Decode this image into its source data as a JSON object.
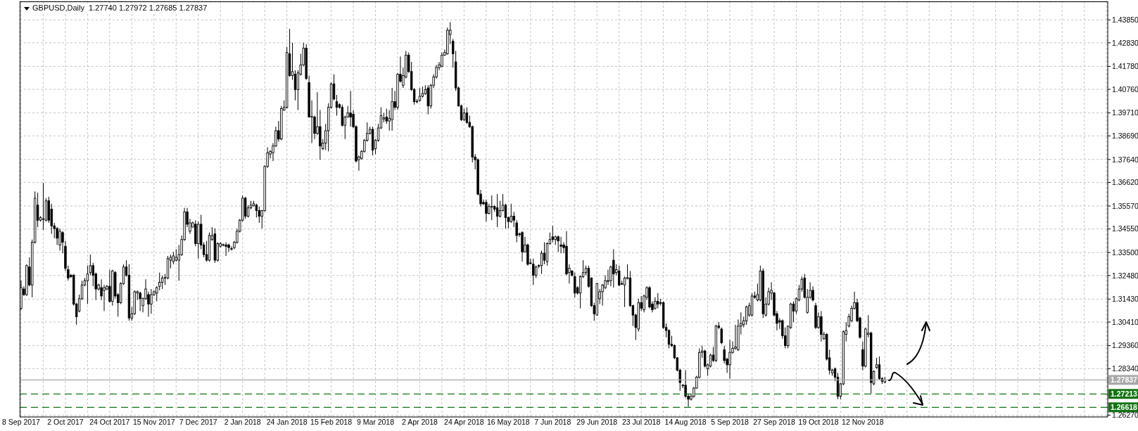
{
  "chart_data": {
    "type": "candlestick",
    "title": "GBPUSD,Daily  1.27740 1.27972 1.27685 1.27837",
    "color": "#000000",
    "grid": true,
    "ylim": [
      1.2619,
      1.4467
    ],
    "yticks": [
      {
        "value": 1.4385,
        "label": "1.43850"
      },
      {
        "value": 1.4283,
        "label": "1.42830"
      },
      {
        "value": 1.4178,
        "label": "1.41780"
      },
      {
        "value": 1.4076,
        "label": "1.40760"
      },
      {
        "value": 1.3971,
        "label": "1.39710"
      },
      {
        "value": 1.3869,
        "label": "1.38690"
      },
      {
        "value": 1.3764,
        "label": "1.37640"
      },
      {
        "value": 1.3662,
        "label": "1.36620"
      },
      {
        "value": 1.3557,
        "label": "1.35570"
      },
      {
        "value": 1.3455,
        "label": "1.34550"
      },
      {
        "value": 1.335,
        "label": "1.33500"
      },
      {
        "value": 1.3248,
        "label": "1.32480"
      },
      {
        "value": 1.3143,
        "label": "1.31430"
      },
      {
        "value": 1.3041,
        "label": "1.30410"
      },
      {
        "value": 1.2936,
        "label": "1.29360"
      },
      {
        "value": 1.2834,
        "label": "1.28340"
      },
      {
        "value": 1.2627,
        "label": "1.26270"
      }
    ],
    "ref_lines": [
      {
        "axis": "y",
        "value": 1.27837,
        "label": "1.27837",
        "color": "#a8a8a8",
        "line_style": "solid"
      },
      {
        "axis": "y",
        "value": 1.27213,
        "label": "1.27213",
        "color": "#137313",
        "line_style": "dashed"
      },
      {
        "axis": "y",
        "value": 1.26618,
        "label": "1.26618",
        "color": "#137313",
        "line_style": "dashed"
      }
    ],
    "categories": [
      "8 Sep 2017",
      null,
      null,
      null,
      null,
      null,
      null,
      null,
      null,
      null,
      null,
      null,
      null,
      null,
      null,
      null,
      "2 Oct 2017",
      null,
      null,
      null,
      null,
      null,
      null,
      null,
      null,
      null,
      null,
      null,
      null,
      null,
      null,
      null,
      "24 Oct 2017",
      null,
      null,
      null,
      null,
      null,
      null,
      null,
      null,
      null,
      null,
      null,
      null,
      null,
      null,
      null,
      "15 Nov 2017",
      null,
      null,
      null,
      null,
      null,
      null,
      null,
      null,
      null,
      null,
      null,
      null,
      null,
      null,
      null,
      "7 Dec 2017",
      null,
      null,
      null,
      null,
      null,
      null,
      null,
      null,
      null,
      null,
      null,
      null,
      null,
      null,
      null,
      "2 Jan 2018",
      null,
      null,
      null,
      null,
      null,
      null,
      null,
      null,
      null,
      null,
      null,
      null,
      null,
      null,
      null,
      "24 Jan 2018",
      null,
      null,
      null,
      null,
      null,
      null,
      null,
      null,
      null,
      null,
      null,
      null,
      null,
      null,
      null,
      "15 Feb 2018",
      null,
      null,
      null,
      null,
      null,
      null,
      null,
      null,
      null,
      null,
      null,
      null,
      null,
      null,
      null,
      "9 Mar 2018",
      null,
      null,
      null,
      null,
      null,
      null,
      null,
      null,
      null,
      null,
      null,
      null,
      null,
      null,
      null,
      "2 Apr 2018",
      null,
      null,
      null,
      null,
      null,
      null,
      null,
      null,
      null,
      null,
      null,
      null,
      null,
      null,
      null,
      "24 Apr 2018",
      null,
      null,
      null,
      null,
      null,
      null,
      null,
      null,
      null,
      null,
      null,
      null,
      null,
      null,
      null,
      "16 May 2018",
      null,
      null,
      null,
      null,
      null,
      null,
      null,
      null,
      null,
      null,
      null,
      null,
      null,
      null,
      null,
      "7 Jun 2018",
      null,
      null,
      null,
      null,
      null,
      null,
      null,
      null,
      null,
      null,
      null,
      null,
      null,
      null,
      null,
      "29 Jun 2018",
      null,
      null,
      null,
      null,
      null,
      null,
      null,
      null,
      null,
      null,
      null,
      null,
      null,
      null,
      null,
      "23 Jul 2018",
      null,
      null,
      null,
      null,
      null,
      null,
      null,
      null,
      null,
      null,
      null,
      null,
      null,
      null,
      null,
      "14 Aug 2018",
      null,
      null,
      null,
      null,
      null,
      null,
      null,
      null,
      null,
      null,
      null,
      null,
      null,
      null,
      null,
      "5 Sep 2018",
      null,
      null,
      null,
      null,
      null,
      null,
      null,
      null,
      null,
      null,
      null,
      null,
      null,
      null,
      null,
      "27 Sep 2018",
      null,
      null,
      null,
      null,
      null,
      null,
      null,
      null,
      null,
      null,
      null,
      null,
      null,
      null,
      null,
      "19 Oct 2018",
      null,
      null,
      null,
      null,
      null,
      null,
      null,
      null,
      null,
      null,
      null,
      null,
      null,
      null,
      null,
      "12 Nov 2018",
      null,
      null,
      null,
      null,
      null,
      null,
      null,
      null,
      null,
      null,
      null,
      null,
      null,
      null,
      null,
      null,
      null,
      null,
      null,
      null,
      null,
      null,
      null,
      null,
      null,
      null,
      null,
      null,
      null,
      null,
      null,
      null,
      null,
      null,
      null,
      null,
      null,
      null,
      null,
      null,
      null,
      null,
      null,
      null,
      null,
      null,
      null,
      null,
      null,
      null,
      null,
      null,
      null,
      null,
      null,
      null,
      null,
      null,
      null,
      null,
      null,
      null,
      null,
      null,
      null,
      null,
      null,
      null,
      null,
      null,
      null,
      null,
      null,
      null,
      null,
      null,
      null,
      null,
      null,
      null,
      null,
      null,
      null,
      null,
      null,
      null,
      null,
      null
    ],
    "ohlc": [
      [
        1.3102,
        1.3225,
        1.3096,
        1.3194
      ],
      [
        1.3188,
        1.32,
        1.3157,
        1.3163
      ],
      [
        1.3163,
        1.3298,
        1.3157,
        1.3292
      ],
      [
        1.3286,
        1.3329,
        1.32,
        1.3206
      ],
      [
        1.3206,
        1.3408,
        1.3151,
        1.3396
      ],
      [
        1.3396,
        1.3622,
        1.339,
        1.3592
      ],
      [
        1.3561,
        1.3616,
        1.3463,
        1.3494
      ],
      [
        1.3494,
        1.3512,
        1.3488,
        1.3506
      ],
      [
        1.35,
        1.3659,
        1.3451,
        1.3498
      ],
      [
        1.3494,
        1.3592,
        1.3488,
        1.358
      ],
      [
        1.358,
        1.3598,
        1.3482,
        1.3494
      ],
      [
        1.3543,
        1.3567,
        1.3433,
        1.3469
      ],
      [
        1.3469,
        1.3482,
        1.3414,
        1.3457
      ],
      [
        1.3457,
        1.3463,
        1.3384,
        1.3414
      ],
      [
        1.3384,
        1.3457,
        1.3359,
        1.3445
      ],
      [
        1.3439,
        1.3445,
        1.3347,
        1.3396
      ],
      [
        1.3378,
        1.3402,
        1.3268,
        1.328
      ],
      [
        1.3274,
        1.3292,
        1.3225,
        1.3237
      ],
      [
        1.3249,
        1.3255,
        1.3237,
        1.3243
      ],
      [
        1.3249,
        1.3255,
        1.3114,
        1.3121
      ],
      [
        1.3121,
        1.3127,
        1.3029,
        1.3065
      ],
      [
        1.309,
        1.3163,
        1.3084,
        1.3145
      ],
      [
        1.3145,
        1.3225,
        1.3139,
        1.3206
      ],
      [
        1.3206,
        1.3237,
        1.32,
        1.3225
      ],
      [
        1.3225,
        1.3292,
        1.3121,
        1.3255
      ],
      [
        1.3261,
        1.3341,
        1.3249,
        1.3292
      ],
      [
        1.3292,
        1.3304,
        1.32,
        1.3249
      ],
      [
        1.3255,
        1.3261,
        1.3139,
        1.3188
      ],
      [
        1.3188,
        1.3212,
        1.3182,
        1.3206
      ],
      [
        1.3194,
        1.3231,
        1.3139,
        1.3157
      ],
      [
        1.3182,
        1.3206,
        1.309,
        1.3194
      ],
      [
        1.3188,
        1.3206,
        1.3182,
        1.32
      ],
      [
        1.32,
        1.3274,
        1.3127,
        1.3133
      ],
      [
        1.3133,
        1.3274,
        1.3114,
        1.3268
      ],
      [
        1.3261,
        1.3268,
        1.3145,
        1.3157
      ],
      [
        1.3163,
        1.317,
        1.3065,
        1.3127
      ],
      [
        1.3127,
        1.3218,
        1.3121,
        1.3212
      ],
      [
        1.3212,
        1.3298,
        1.3206,
        1.3286
      ],
      [
        1.3286,
        1.3316,
        1.3243,
        1.3249
      ],
      [
        1.3249,
        1.3298,
        1.3047,
        1.3059
      ],
      [
        1.3059,
        1.3108,
        1.3047,
        1.3078
      ],
      [
        1.3078,
        1.3182,
        1.3072,
        1.3176
      ],
      [
        1.317,
        1.3182,
        1.3139,
        1.3176
      ],
      [
        1.317,
        1.3176,
        1.309,
        1.3145
      ],
      [
        1.3114,
        1.3151,
        1.3084,
        1.3145
      ],
      [
        1.3145,
        1.3231,
        1.3139,
        1.3188
      ],
      [
        1.3163,
        1.3176,
        1.3065,
        1.3121
      ],
      [
        1.3121,
        1.3188,
        1.3078,
        1.3163
      ],
      [
        1.3163,
        1.3182,
        1.3157,
        1.3176
      ],
      [
        1.317,
        1.32,
        1.3133,
        1.3194
      ],
      [
        1.32,
        1.3261,
        1.3182,
        1.3218
      ],
      [
        1.3218,
        1.3249,
        1.3188,
        1.3237
      ],
      [
        1.3237,
        1.3255,
        1.3206,
        1.3239
      ],
      [
        1.3237,
        1.3335,
        1.3231,
        1.3323
      ],
      [
        1.3316,
        1.3341,
        1.328,
        1.3329
      ],
      [
        1.331,
        1.3353,
        1.3298,
        1.3335
      ],
      [
        1.3316,
        1.3365,
        1.331,
        1.3329
      ],
      [
        1.3316,
        1.3384,
        1.3225,
        1.3341
      ],
      [
        1.3341,
        1.3426,
        1.3335,
        1.3408
      ],
      [
        1.3408,
        1.3549,
        1.3402,
        1.3531
      ],
      [
        1.3531,
        1.3549,
        1.3463,
        1.3476
      ],
      [
        1.3445,
        1.35,
        1.3433,
        1.3482
      ],
      [
        1.3463,
        1.3488,
        1.3463,
        1.3482
      ],
      [
        1.3476,
        1.3494,
        1.3378,
        1.339
      ],
      [
        1.339,
        1.3488,
        1.3323,
        1.3476
      ],
      [
        1.3476,
        1.3518,
        1.3365,
        1.3384
      ],
      [
        1.3384,
        1.3396,
        1.3329,
        1.3341
      ],
      [
        1.3341,
        1.3402,
        1.331,
        1.3316
      ],
      [
        1.3316,
        1.3439,
        1.331,
        1.3426
      ],
      [
        1.3408,
        1.3463,
        1.3402,
        1.3426
      ],
      [
        1.3433,
        1.3457,
        1.3304,
        1.3316
      ],
      [
        1.3316,
        1.3396,
        1.331,
        1.339
      ],
      [
        1.3378,
        1.3396,
        1.3372,
        1.339
      ],
      [
        1.3384,
        1.339,
        1.3378,
        1.3385
      ],
      [
        1.3384,
        1.3396,
        1.3335,
        1.3378
      ],
      [
        1.3384,
        1.339,
        1.3353,
        1.3372
      ],
      [
        1.3365,
        1.3378,
        1.3359,
        1.3368
      ],
      [
        1.3372,
        1.3402,
        1.3365,
        1.3396
      ],
      [
        1.3396,
        1.3457,
        1.339,
        1.3445
      ],
      [
        1.3445,
        1.35,
        1.3439,
        1.3494
      ],
      [
        1.3494,
        1.3604,
        1.3488,
        1.3592
      ],
      [
        1.3592,
        1.3598,
        1.35,
        1.3512
      ],
      [
        1.3512,
        1.3561,
        1.3506,
        1.3549
      ],
      [
        1.3549,
        1.358,
        1.3543,
        1.3561
      ],
      [
        1.3558,
        1.358,
        1.3555,
        1.3567
      ],
      [
        1.3561,
        1.3567,
        1.3506,
        1.3537
      ],
      [
        1.3537,
        1.3555,
        1.3482,
        1.3512
      ],
      [
        1.3512,
        1.354,
        1.3457,
        1.3537
      ],
      [
        1.3537,
        1.3739,
        1.3531,
        1.3733
      ],
      [
        1.3733,
        1.3818,
        1.3726,
        1.3794
      ],
      [
        1.3788,
        1.3806,
        1.3769,
        1.38
      ],
      [
        1.3794,
        1.3837,
        1.3757,
        1.3824
      ],
      [
        1.3824,
        1.391,
        1.382,
        1.3892
      ],
      [
        1.3892,
        1.3935,
        1.3843,
        1.3855
      ],
      [
        1.3855,
        1.4002,
        1.3849,
        1.399
      ],
      [
        1.3984,
        1.4027,
        1.398,
        1.3996
      ],
      [
        1.3996,
        1.4265,
        1.399,
        1.424
      ],
      [
        1.4234,
        1.4345,
        1.4131,
        1.4137
      ],
      [
        1.4137,
        1.4283,
        1.4118,
        1.4155
      ],
      [
        1.4143,
        1.4161,
        1.4027,
        1.4075
      ],
      [
        1.4075,
        1.4161,
        1.3984,
        1.4149
      ],
      [
        1.4143,
        1.4234,
        1.4137,
        1.4185
      ],
      [
        1.4185,
        1.4283,
        1.4179,
        1.4259
      ],
      [
        1.4259,
        1.4277,
        1.4118,
        1.4124
      ],
      [
        1.4106,
        1.4137,
        1.395,
        1.3953
      ],
      [
        1.3953,
        1.4027,
        1.3837,
        1.3955
      ],
      [
        1.3953,
        1.3959,
        1.3855,
        1.388
      ],
      [
        1.388,
        1.4063,
        1.3873,
        1.391
      ],
      [
        1.391,
        1.3984,
        1.3763,
        1.3824
      ],
      [
        1.3812,
        1.3855,
        1.3806,
        1.3837
      ],
      [
        1.3837,
        1.3922,
        1.3806,
        1.3892
      ],
      [
        1.3892,
        1.4014,
        1.38,
        1.3996
      ],
      [
        1.3996,
        1.4106,
        1.399,
        1.41
      ],
      [
        1.41,
        1.4143,
        1.4027,
        1.4033
      ],
      [
        1.4021,
        1.4051,
        1.3959,
        1.3996
      ],
      [
        1.4008,
        1.4014,
        1.399,
        1.3996
      ],
      [
        1.3996,
        1.4008,
        1.391,
        1.3916
      ],
      [
        1.3916,
        1.3959,
        1.3855,
        1.3953
      ],
      [
        1.3953,
        1.4002,
        1.395,
        1.3971
      ],
      [
        1.3971,
        1.4069,
        1.391,
        1.3953
      ],
      [
        1.3965,
        1.3984,
        1.3904,
        1.391
      ],
      [
        1.391,
        1.3916,
        1.3751,
        1.3757
      ],
      [
        1.3763,
        1.3782,
        1.3714,
        1.3775
      ],
      [
        1.3769,
        1.3806,
        1.3763,
        1.38
      ],
      [
        1.38,
        1.3855,
        1.3795,
        1.3849
      ],
      [
        1.3849,
        1.3929,
        1.3843,
        1.388
      ],
      [
        1.388,
        1.391,
        1.3875,
        1.3898
      ],
      [
        1.3898,
        1.391,
        1.3782,
        1.3806
      ],
      [
        1.3812,
        1.3855,
        1.3788,
        1.3849
      ],
      [
        1.3849,
        1.3922,
        1.3843,
        1.3904
      ],
      [
        1.3904,
        1.3996,
        1.39,
        1.3959
      ],
      [
        1.3944,
        1.3971,
        1.3929,
        1.3949
      ],
      [
        1.3953,
        1.399,
        1.3922,
        1.3935
      ],
      [
        1.3935,
        1.3984,
        1.3892,
        1.3947
      ],
      [
        1.3941,
        1.4082,
        1.3892,
        1.4021
      ],
      [
        1.4021,
        1.4069,
        1.3984,
        1.3996
      ],
      [
        1.3996,
        1.4149,
        1.3984,
        1.4143
      ],
      [
        1.4143,
        1.4222,
        1.4106,
        1.4112
      ],
      [
        1.4094,
        1.4173,
        1.4082,
        1.4137
      ],
      [
        1.4131,
        1.4247,
        1.4124,
        1.4228
      ],
      [
        1.4228,
        1.424,
        1.4149,
        1.4155
      ],
      [
        1.4155,
        1.4198,
        1.4069,
        1.4075
      ],
      [
        1.4075,
        1.4082,
        1.4008,
        1.4021
      ],
      [
        1.4023,
        1.4033,
        1.4014,
        1.4021
      ],
      [
        1.4027,
        1.4082,
        1.4021,
        1.4045
      ],
      [
        1.4045,
        1.4088,
        1.4039,
        1.4057
      ],
      [
        1.4057,
        1.4094,
        1.4051,
        1.4075
      ],
      [
        1.4082,
        1.4094,
        1.3965,
        1.4002
      ],
      [
        1.4002,
        1.41,
        1.399,
        1.4094
      ],
      [
        1.4094,
        1.4143,
        1.4082,
        1.4131
      ],
      [
        1.4131,
        1.4185,
        1.4124,
        1.4173
      ],
      [
        1.4173,
        1.4198,
        1.4161,
        1.4185
      ],
      [
        1.4179,
        1.424,
        1.4173,
        1.4228
      ],
      [
        1.4228,
        1.4253,
        1.4225,
        1.424
      ],
      [
        1.4234,
        1.4351,
        1.423,
        1.4339
      ],
      [
        1.432,
        1.4375,
        1.4277,
        1.4339
      ],
      [
        1.429,
        1.43,
        1.4173,
        1.4234
      ],
      [
        1.4198,
        1.4247,
        1.4069,
        1.4082
      ],
      [
        1.4082,
        1.4088,
        1.4,
        1.4002
      ],
      [
        1.4002,
        1.4008,
        1.3935,
        1.3941
      ],
      [
        1.3941,
        1.399,
        1.3935,
        1.3971
      ],
      [
        1.3971,
        1.3996,
        1.3922,
        1.3929
      ],
      [
        1.3929,
        1.3959,
        1.3904,
        1.391
      ],
      [
        1.391,
        1.3915,
        1.3751,
        1.3775
      ],
      [
        1.3775,
        1.3788,
        1.372,
        1.3763
      ],
      [
        1.3763,
        1.3769,
        1.3604,
        1.361
      ],
      [
        1.361,
        1.3629,
        1.3555,
        1.3567
      ],
      [
        1.3573,
        1.3586,
        1.3561,
        1.3567
      ],
      [
        1.3573,
        1.3586,
        1.3488,
        1.3524
      ],
      [
        1.3524,
        1.3567,
        1.352,
        1.3555
      ],
      [
        1.3553,
        1.3604,
        1.3494,
        1.3555
      ],
      [
        1.3555,
        1.3561,
        1.3531,
        1.3543
      ],
      [
        1.3549,
        1.361,
        1.3463,
        1.3512
      ],
      [
        1.3512,
        1.358,
        1.3506,
        1.3537
      ],
      [
        1.3537,
        1.361,
        1.3533,
        1.3561
      ],
      [
        1.3561,
        1.3567,
        1.3457,
        1.3506
      ],
      [
        1.3506,
        1.351,
        1.3457,
        1.3488
      ],
      [
        1.3488,
        1.3567,
        1.3482,
        1.3512
      ],
      [
        1.3512,
        1.3531,
        1.3463,
        1.3494
      ],
      [
        1.3482,
        1.3494,
        1.3396,
        1.3426
      ],
      [
        1.3433,
        1.3439,
        1.342,
        1.343
      ],
      [
        1.3439,
        1.3445,
        1.331,
        1.3353
      ],
      [
        1.3353,
        1.342,
        1.335,
        1.3384
      ],
      [
        1.3384,
        1.339,
        1.3292,
        1.3298
      ],
      [
        1.3304,
        1.3323,
        1.3298,
        1.3302
      ],
      [
        1.3298,
        1.3323,
        1.3206,
        1.3249
      ],
      [
        1.3249,
        1.3292,
        1.3237,
        1.3286
      ],
      [
        1.3292,
        1.3298,
        1.328,
        1.329
      ],
      [
        1.3292,
        1.3359,
        1.3255,
        1.3347
      ],
      [
        1.3347,
        1.3396,
        1.3298,
        1.3316
      ],
      [
        1.331,
        1.3396,
        1.3292,
        1.339
      ],
      [
        1.339,
        1.3439,
        1.3385,
        1.3408
      ],
      [
        1.342,
        1.3469,
        1.3396,
        1.3408
      ],
      [
        1.3408,
        1.3426,
        1.3384,
        1.342
      ],
      [
        1.342,
        1.3426,
        1.3353,
        1.3402
      ],
      [
        1.3384,
        1.342,
        1.3347,
        1.3378
      ],
      [
        1.3384,
        1.3396,
        1.3347,
        1.3372
      ],
      [
        1.3378,
        1.3445,
        1.3249,
        1.3255
      ],
      [
        1.3261,
        1.3298,
        1.3212,
        1.328
      ],
      [
        1.3268,
        1.3272,
        1.3243,
        1.3249
      ],
      [
        1.3243,
        1.3261,
        1.3151,
        1.317
      ],
      [
        1.3194,
        1.32,
        1.3163,
        1.317
      ],
      [
        1.317,
        1.3249,
        1.3102,
        1.3243
      ],
      [
        1.3243,
        1.3316,
        1.3237,
        1.3261
      ],
      [
        1.3261,
        1.3292,
        1.3249,
        1.328
      ],
      [
        1.328,
        1.3292,
        1.3194,
        1.32
      ],
      [
        1.3237,
        1.324,
        1.3108,
        1.3114
      ],
      [
        1.3114,
        1.3127,
        1.3047,
        1.3078
      ],
      [
        1.3072,
        1.3215,
        1.307,
        1.3212
      ],
      [
        1.3145,
        1.3188,
        1.3121,
        1.3176
      ],
      [
        1.3176,
        1.321,
        1.3114,
        1.3206
      ],
      [
        1.3194,
        1.3249,
        1.3188,
        1.3225
      ],
      [
        1.3225,
        1.3274,
        1.3206,
        1.3222
      ],
      [
        1.3225,
        1.3292,
        1.32,
        1.3286
      ],
      [
        1.3316,
        1.3365,
        1.3194,
        1.3255
      ],
      [
        1.3261,
        1.3298,
        1.3249,
        1.3274
      ],
      [
        1.3268,
        1.3292,
        1.32,
        1.3206
      ],
      [
        1.3212,
        1.3225,
        1.3206,
        1.321
      ],
      [
        1.3206,
        1.3243,
        1.3108,
        1.3237
      ],
      [
        1.3234,
        1.3298,
        1.3231,
        1.3239
      ],
      [
        1.3237,
        1.3268,
        1.3108,
        1.3114
      ],
      [
        1.3114,
        1.3118,
        1.3023,
        1.3072
      ],
      [
        1.3072,
        1.3078,
        1.2961,
        1.3017
      ],
      [
        1.301,
        1.3145,
        1.2998,
        1.3127
      ],
      [
        1.3127,
        1.3157,
        1.309,
        1.3102
      ],
      [
        1.3096,
        1.3163,
        1.3084,
        1.3157
      ],
      [
        1.3151,
        1.32,
        1.3139,
        1.3194
      ],
      [
        1.3194,
        1.32,
        1.3102,
        1.3108
      ],
      [
        1.3121,
        1.3133,
        1.3084,
        1.3096
      ],
      [
        1.3102,
        1.3151,
        1.3096,
        1.3133
      ],
      [
        1.3133,
        1.317,
        1.3102,
        1.3121
      ],
      [
        1.3127,
        1.3145,
        1.3114,
        1.3125
      ],
      [
        1.3127,
        1.3133,
        1.301,
        1.3017
      ],
      [
        1.3017,
        1.3035,
        1.2973,
        1.3004
      ],
      [
        1.3004,
        1.3008,
        1.2924,
        1.2942
      ],
      [
        1.2942,
        1.298,
        1.293,
        1.2936
      ],
      [
        1.2936,
        1.2942,
        1.2876,
        1.2882
      ],
      [
        1.2882,
        1.2885,
        1.2821,
        1.2827
      ],
      [
        1.2827,
        1.2833,
        1.2735,
        1.2772
      ],
      [
        1.276,
        1.2766,
        1.2747,
        1.2758
      ],
      [
        1.276,
        1.2827,
        1.2704,
        1.2711
      ],
      [
        1.2711,
        1.2723,
        1.2664,
        1.2698
      ],
      [
        1.2698,
        1.2723,
        1.2692,
        1.2711
      ],
      [
        1.2711,
        1.2753,
        1.2704,
        1.2747
      ],
      [
        1.2747,
        1.2802,
        1.2745,
        1.2796
      ],
      [
        1.2796,
        1.2924,
        1.279,
        1.2906
      ],
      [
        1.2906,
        1.2936,
        1.2882,
        1.2912
      ],
      [
        1.2912,
        1.2918,
        1.2839,
        1.2845
      ],
      [
        1.2833,
        1.2857,
        1.2802,
        1.2851
      ],
      [
        1.2845,
        1.29,
        1.2839,
        1.2894
      ],
      [
        1.2894,
        1.293,
        1.2863,
        1.287
      ],
      [
        1.287,
        1.3029,
        1.2863,
        1.3023
      ],
      [
        1.3023,
        1.3041,
        1.301,
        1.3017
      ],
      [
        1.301,
        1.3017,
        1.2942,
        1.2949
      ],
      [
        1.2918,
        1.2936,
        1.2857,
        1.287
      ],
      [
        1.2876,
        1.2882,
        1.2815,
        1.2851
      ],
      [
        1.2851,
        1.2961,
        1.279,
        1.2906
      ],
      [
        1.2906,
        1.2955,
        1.29,
        1.2924
      ],
      [
        1.2924,
        1.3029,
        1.2918,
        1.293
      ],
      [
        1.2918,
        1.3053,
        1.2912,
        1.3023
      ],
      [
        1.3023,
        1.3084,
        1.2986,
        1.3035
      ],
      [
        1.3029,
        1.3065,
        1.3017,
        1.3047
      ],
      [
        1.3047,
        1.3114,
        1.3029,
        1.3108
      ],
      [
        1.3072,
        1.3127,
        1.3065,
        1.3114
      ],
      [
        1.3072,
        1.317,
        1.3065,
        1.3157
      ],
      [
        1.3157,
        1.3176,
        1.3145,
        1.3151
      ],
      [
        1.3139,
        1.3212,
        1.3133,
        1.3163
      ],
      [
        1.3139,
        1.3292,
        1.3133,
        1.3268
      ],
      [
        1.3268,
        1.328,
        1.3059,
        1.3078
      ],
      [
        1.3072,
        1.3151,
        1.3065,
        1.3121
      ],
      [
        1.3121,
        1.3194,
        1.3114,
        1.3176
      ],
      [
        1.317,
        1.3218,
        1.3139,
        1.3182
      ],
      [
        1.317,
        1.3176,
        1.3065,
        1.3072
      ],
      [
        1.3078,
        1.309,
        1.3004,
        1.3035
      ],
      [
        1.3047,
        1.3059,
        1.301,
        1.3041
      ],
      [
        1.3047,
        1.3053,
        1.2967,
        1.298
      ],
      [
        1.298,
        1.3017,
        1.2924,
        1.2936
      ],
      [
        1.2936,
        1.3025,
        1.2924,
        1.3023
      ],
      [
        1.3017,
        1.3127,
        1.301,
        1.3121
      ],
      [
        1.3121,
        1.3133,
        1.3041,
        1.309
      ],
      [
        1.309,
        1.3151,
        1.3078,
        1.3145
      ],
      [
        1.3139,
        1.3206,
        1.3133,
        1.3188
      ],
      [
        1.3188,
        1.3243,
        1.3176,
        1.3231
      ],
      [
        1.3237,
        1.3255,
        1.3145,
        1.3151
      ],
      [
        1.3084,
        1.3188,
        1.3078,
        1.3151
      ],
      [
        1.3151,
        1.3218,
        1.3145,
        1.3182
      ],
      [
        1.3182,
        1.32,
        1.3133,
        1.3139
      ],
      [
        1.3114,
        1.3127,
        1.301,
        1.3017
      ],
      [
        1.3017,
        1.3084,
        1.301,
        1.3065
      ],
      [
        1.3065,
        1.309,
        1.2955,
        1.2986
      ],
      [
        1.2967,
        1.2998,
        1.2961,
        1.2986
      ],
      [
        1.2986,
        1.2992,
        1.287,
        1.2876
      ],
      [
        1.2882,
        1.2918,
        1.2808,
        1.2827
      ],
      [
        1.2815,
        1.2833,
        1.2802,
        1.2827
      ],
      [
        1.2833,
        1.2839,
        1.2778,
        1.2796
      ],
      [
        1.2796,
        1.2815,
        1.2698,
        1.2711
      ],
      [
        1.2711,
        1.277,
        1.2698,
        1.2766
      ],
      [
        1.2766,
        1.3004,
        1.276,
        1.2998
      ],
      [
        1.2986,
        1.3041,
        1.2955,
        1.3004
      ],
      [
        1.3023,
        1.3078,
        1.3017,
        1.3065
      ],
      [
        1.3047,
        1.3114,
        1.3041,
        1.3102
      ],
      [
        1.3102,
        1.3176,
        1.3096,
        1.3127
      ],
      [
        1.3127,
        1.3145,
        1.3041,
        1.3047
      ],
      [
        1.3059,
        1.3065,
        1.2967,
        1.2973
      ],
      [
        1.2918,
        1.2955,
        1.2827,
        1.2845
      ],
      [
        1.2845,
        1.3017,
        1.2839,
        1.301
      ],
      [
        1.2986,
        1.3072,
        1.2973,
        1.2992
      ],
      [
        1.2992,
        1.2998,
        1.2723,
        1.2772
      ],
      [
        1.2766,
        1.2827,
        1.276,
        1.2821
      ],
      [
        1.2839,
        1.2882,
        1.2833,
        1.2851
      ],
      [
        1.2851,
        1.2888,
        1.2784,
        1.279
      ],
      [
        1.279,
        1.2796,
        1.2766,
        1.2778
      ],
      [
        1.2774,
        1.27972,
        1.27685,
        1.27837
      ],
      null,
      null,
      null,
      null,
      null,
      null,
      null,
      null,
      null,
      null,
      null,
      null,
      null,
      null,
      null,
      null,
      null,
      null,
      null,
      null,
      null,
      null,
      null,
      null,
      null,
      null,
      null,
      null,
      null,
      null,
      null,
      null,
      null,
      null,
      null,
      null,
      null,
      null,
      null,
      null,
      null,
      null,
      null,
      null,
      null,
      null,
      null,
      null,
      null,
      null,
      null,
      null,
      null,
      null,
      null,
      null,
      null,
      null,
      null,
      null,
      null,
      null,
      null,
      null,
      null,
      null,
      null,
      null,
      null,
      null,
      null,
      null,
      null,
      null,
      null,
      null,
      null,
      null,
      null,
      null
    ]
  }
}
